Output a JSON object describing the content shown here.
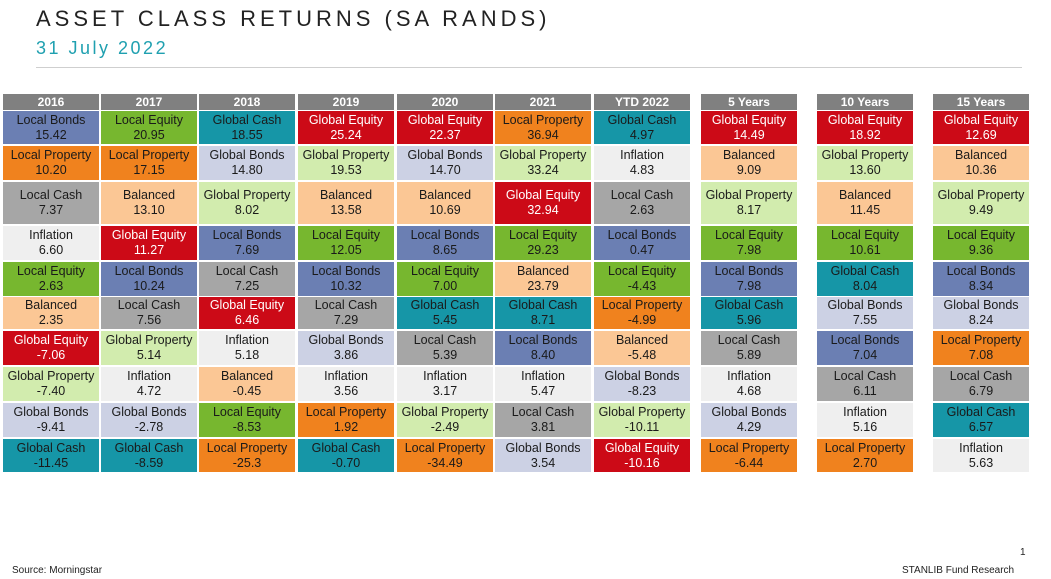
{
  "title": "ASSET CLASS RETURNS (SA RANDS)",
  "subtitle": "31 July 2022",
  "footer": {
    "source": "Source: Morningstar",
    "credit": "STANLIB Fund Research",
    "page_number": "1"
  },
  "styles": {
    "Local Bonds": {
      "bg": "#6b7fb3",
      "fg": "#1a1a1a"
    },
    "Local Equity": {
      "bg": "#77b72f",
      "fg": "#1a1a1a"
    },
    "Global Cash": {
      "bg": "#1696a7",
      "fg": "#1a1a1a"
    },
    "Global Equity": {
      "bg": "#cc0a17",
      "fg": "#ffffff"
    },
    "Local Property": {
      "bg": "#f0821e",
      "fg": "#1a1a1a"
    },
    "Global Bonds": {
      "bg": "#ccd1e4",
      "fg": "#1a1a1a"
    },
    "Global Property": {
      "bg": "#d2ecae",
      "fg": "#1a1a1a"
    },
    "Inflation": {
      "bg": "#efefef",
      "fg": "#1a1a1a"
    },
    "Local Cash": {
      "bg": "#a6a6a6",
      "fg": "#1a1a1a"
    },
    "Balanced": {
      "bg": "#fbc795",
      "fg": "#1a1a1a"
    }
  },
  "chart_data": {
    "type": "table",
    "columns": [
      {
        "header": "2016",
        "cells": [
          {
            "label": "Local Bonds",
            "value": "15.42"
          },
          {
            "label": "Local Property",
            "value": "10.20"
          },
          {
            "label": "Local Cash",
            "value": "7.37"
          },
          {
            "label": "Inflation",
            "value": "6.60"
          },
          {
            "label": "Local Equity",
            "value": "2.63"
          },
          {
            "label": "Balanced",
            "value": "2.35"
          },
          {
            "label": "Global Equity",
            "value": "-7.06"
          },
          {
            "label": "Global Property",
            "value": "-7.40"
          },
          {
            "label": "Global Bonds",
            "value": "-9.41"
          },
          {
            "label": "Global Cash",
            "value": "-11.45"
          }
        ]
      },
      {
        "header": "2017",
        "cells": [
          {
            "label": "Local Equity",
            "value": "20.95"
          },
          {
            "label": "Local Property",
            "value": "17.15"
          },
          {
            "label": "Balanced",
            "value": "13.10"
          },
          {
            "label": "Global Equity",
            "value": "11.27"
          },
          {
            "label": "Local Bonds",
            "value": "10.24"
          },
          {
            "label": "Local Cash",
            "value": "7.56"
          },
          {
            "label": "Global Property",
            "value": "5.14"
          },
          {
            "label": "Inflation",
            "value": "4.72"
          },
          {
            "label": "Global Bonds",
            "value": "-2.78"
          },
          {
            "label": "Global Cash",
            "value": "-8.59"
          }
        ]
      },
      {
        "header": "2018",
        "cells": [
          {
            "label": "Global Cash",
            "value": "18.55"
          },
          {
            "label": "Global Bonds",
            "value": "14.80"
          },
          {
            "label": "Global Property",
            "value": "8.02"
          },
          {
            "label": "Local Bonds",
            "value": "7.69"
          },
          {
            "label": "Local Cash",
            "value": "7.25"
          },
          {
            "label": "Global Equity",
            "value": "6.46"
          },
          {
            "label": "Inflation",
            "value": "5.18"
          },
          {
            "label": "Balanced",
            "value": "-0.45"
          },
          {
            "label": "Local Equity",
            "value": "-8.53"
          },
          {
            "label": "Local Property",
            "value": "-25.3"
          }
        ]
      },
      {
        "header": "2019",
        "cells": [
          {
            "label": "Global Equity",
            "value": "25.24"
          },
          {
            "label": "Global Property",
            "value": "19.53"
          },
          {
            "label": "Balanced",
            "value": "13.58"
          },
          {
            "label": "Local Equity",
            "value": "12.05"
          },
          {
            "label": "Local Bonds",
            "value": "10.32"
          },
          {
            "label": "Local Cash",
            "value": "7.29"
          },
          {
            "label": "Global Bonds",
            "value": "3.86"
          },
          {
            "label": "Inflation",
            "value": "3.56"
          },
          {
            "label": "Local Property",
            "value": "1.92"
          },
          {
            "label": "Global Cash",
            "value": "-0.70"
          }
        ]
      },
      {
        "header": "2020",
        "cells": [
          {
            "label": "Global Equity",
            "value": "22.37"
          },
          {
            "label": "Global Bonds",
            "value": "14.70"
          },
          {
            "label": "Balanced",
            "value": "10.69"
          },
          {
            "label": "Local Bonds",
            "value": "8.65"
          },
          {
            "label": "Local Equity",
            "value": "7.00"
          },
          {
            "label": "Global Cash",
            "value": "5.45"
          },
          {
            "label": "Local Cash",
            "value": "5.39"
          },
          {
            "label": "Inflation",
            "value": "3.17"
          },
          {
            "label": "Global Property",
            "value": "-2.49"
          },
          {
            "label": "Local Property",
            "value": "-34.49"
          }
        ]
      },
      {
        "header": "2021",
        "cells": [
          {
            "label": "Local Property",
            "value": "36.94"
          },
          {
            "label": "Global Property",
            "value": "33.24"
          },
          {
            "label": "Global Equity",
            "value": "32.94"
          },
          {
            "label": "Local Equity",
            "value": "29.23"
          },
          {
            "label": "Balanced",
            "value": "23.79"
          },
          {
            "label": "Global Cash",
            "value": "8.71"
          },
          {
            "label": "Local Bonds",
            "value": "8.40"
          },
          {
            "label": "Inflation",
            "value": "5.47"
          },
          {
            "label": "Local Cash",
            "value": "3.81"
          },
          {
            "label": "Global Bonds",
            "value": "3.54"
          }
        ]
      },
      {
        "header": "YTD 2022",
        "cells": [
          {
            "label": "Global Cash",
            "value": "4.97"
          },
          {
            "label": "Inflation",
            "value": "4.83"
          },
          {
            "label": "Local Cash",
            "value": "2.63"
          },
          {
            "label": "Local Bonds",
            "value": "0.47"
          },
          {
            "label": "Local Equity",
            "value": "-4.43"
          },
          {
            "label": "Local Property",
            "value": "-4.99"
          },
          {
            "label": "Balanced",
            "value": "-5.48"
          },
          {
            "label": "Global Bonds",
            "value": "-8.23"
          },
          {
            "label": "Global Property",
            "value": "-10.11"
          },
          {
            "label": "Global Equity",
            "value": "-10.16"
          }
        ]
      },
      {
        "header": "5 Years",
        "cells": [
          {
            "label": "Global Equity",
            "value": "14.49"
          },
          {
            "label": "Balanced",
            "value": "9.09"
          },
          {
            "label": "Global Property",
            "value": "8.17"
          },
          {
            "label": "Local Equity",
            "value": "7.98"
          },
          {
            "label": "Local Bonds",
            "value": "7.98"
          },
          {
            "label": "Global Cash",
            "value": "5.96"
          },
          {
            "label": "Local Cash",
            "value": "5.89"
          },
          {
            "label": "Inflation",
            "value": "4.68"
          },
          {
            "label": "Global Bonds",
            "value": "4.29"
          },
          {
            "label": "Local Property",
            "value": "-6.44"
          }
        ]
      },
      {
        "header": "10 Years",
        "cells": [
          {
            "label": "Global Equity",
            "value": "18.92"
          },
          {
            "label": "Global Property",
            "value": "13.60"
          },
          {
            "label": "Balanced",
            "value": "11.45"
          },
          {
            "label": "Local Equity",
            "value": "10.61"
          },
          {
            "label": "Global Cash",
            "value": "8.04"
          },
          {
            "label": "Global Bonds",
            "value": "7.55"
          },
          {
            "label": "Local Bonds",
            "value": "7.04"
          },
          {
            "label": "Local Cash",
            "value": "6.11"
          },
          {
            "label": "Inflation",
            "value": "5.16"
          },
          {
            "label": "Local Property",
            "value": "2.70"
          }
        ]
      },
      {
        "header": "15 Years",
        "cells": [
          {
            "label": "Global Equity",
            "value": "12.69"
          },
          {
            "label": "Balanced",
            "value": "10.36"
          },
          {
            "label": "Global Property",
            "value": "9.49"
          },
          {
            "label": "Local Equity",
            "value": "9.36"
          },
          {
            "label": "Local Bonds",
            "value": "8.34"
          },
          {
            "label": "Global Bonds",
            "value": "8.24"
          },
          {
            "label": "Local Property",
            "value": "7.08"
          },
          {
            "label": "Local Cash",
            "value": "6.79"
          },
          {
            "label": "Global Cash",
            "value": "6.57"
          },
          {
            "label": "Inflation",
            "value": "5.63"
          }
        ]
      }
    ]
  }
}
